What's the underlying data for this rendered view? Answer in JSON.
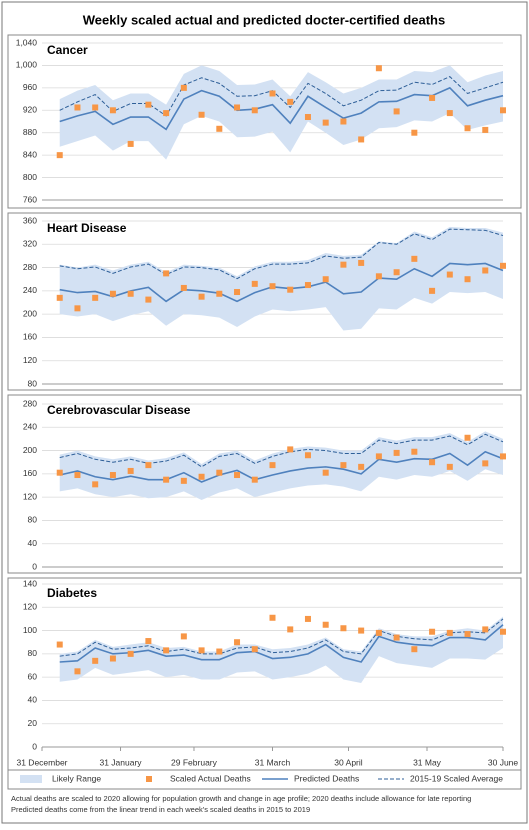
{
  "title": "Weekly scaled actual and predicted docter-certified deaths",
  "notes": [
    "Actual deaths are scaled to 2020 allowing for population growth and change in age profile; 2020 deaths include allowance for late reporting",
    "Predicted deaths come from the linear trend in each week's scaled deaths in 2015 to 2019"
  ],
  "chart_data": [
    {
      "type": "line",
      "title": "Cancer",
      "x": [
        7,
        14,
        21,
        28,
        35,
        42,
        49,
        56,
        63,
        70,
        77,
        84,
        91,
        98,
        105,
        112,
        119,
        126,
        133,
        140,
        147,
        154,
        161,
        168,
        175,
        182
      ],
      "xlim": [
        0,
        182
      ],
      "ylim": [
        760,
        1040
      ],
      "yticks": [
        760,
        800,
        840,
        880,
        920,
        960,
        {
          "value": 1000,
          "label": "1,000"
        },
        {
          "value": 1040,
          "label": "1,040"
        }
      ],
      "grid": true,
      "series": [
        {
          "name": "Likely Range",
          "type": "area",
          "color": "#d3e1f3",
          "low": [
            855,
            865,
            875,
            848,
            865,
            865,
            832,
            895,
            910,
            900,
            872,
            873,
            882,
            845,
            900,
            880,
            858,
            868,
            888,
            890,
            902,
            900,
            915,
            885,
            893,
            900
          ],
          "high": [
            940,
            955,
            965,
            938,
            950,
            950,
            930,
            985,
            1000,
            990,
            965,
            966,
            975,
            945,
            988,
            970,
            950,
            960,
            975,
            975,
            990,
            988,
            1000,
            970,
            982,
            990
          ]
        },
        {
          "name": "Scaled Actual Deaths",
          "type": "scatter",
          "color": "#f79646",
          "values": [
            840,
            925,
            925,
            920,
            860,
            930,
            915,
            960,
            912,
            887,
            925,
            920,
            950,
            935,
            908,
            898,
            900,
            868,
            995,
            918,
            880,
            942,
            915,
            888,
            885,
            920
          ]
        },
        {
          "name": "Predicted Deaths",
          "type": "line",
          "color": "#4f81bd",
          "values": [
            900,
            910,
            918,
            895,
            908,
            908,
            886,
            940,
            955,
            945,
            920,
            922,
            930,
            897,
            945,
            925,
            906,
            915,
            935,
            936,
            948,
            946,
            960,
            928,
            938,
            946
          ]
        },
        {
          "name": "2015-19 Scaled Average",
          "type": "line",
          "dash": true,
          "color": "#2e5f98",
          "values": [
            920,
            935,
            948,
            918,
            932,
            932,
            910,
            965,
            978,
            968,
            945,
            946,
            955,
            925,
            968,
            950,
            928,
            938,
            955,
            956,
            970,
            966,
            980,
            950,
            960,
            970
          ]
        }
      ]
    },
    {
      "type": "line",
      "title": "Heart Disease",
      "x": [
        7,
        14,
        21,
        28,
        35,
        42,
        49,
        56,
        63,
        70,
        77,
        84,
        91,
        98,
        105,
        112,
        119,
        126,
        133,
        140,
        147,
        154,
        161,
        168,
        175,
        182
      ],
      "xlim": [
        0,
        182
      ],
      "ylim": [
        80,
        360
      ],
      "yticks": [
        80,
        120,
        160,
        200,
        240,
        280,
        320,
        360
      ],
      "grid": true,
      "series": [
        {
          "type": "area",
          "color": "#d3e1f3",
          "low": [
            200,
            196,
            200,
            188,
            198,
            205,
            180,
            200,
            198,
            194,
            178,
            196,
            208,
            205,
            208,
            212,
            172,
            175,
            210,
            208,
            228,
            218,
            238,
            236,
            238,
            226
          ],
          "high": [
            285,
            280,
            285,
            275,
            285,
            290,
            272,
            285,
            283,
            280,
            265,
            282,
            290,
            290,
            293,
            305,
            300,
            302,
            325,
            322,
            342,
            332,
            350,
            348,
            348,
            340
          ]
        },
        {
          "type": "scatter",
          "color": "#f79646",
          "values": [
            228,
            210,
            228,
            235,
            235,
            225,
            270,
            245,
            230,
            235,
            238,
            252,
            248,
            242,
            250,
            260,
            285,
            288,
            265,
            272,
            295,
            240,
            268,
            260,
            275,
            283
          ]
        },
        {
          "type": "line",
          "color": "#4f81bd",
          "values": [
            242,
            237,
            239,
            230,
            240,
            246,
            222,
            242,
            240,
            236,
            222,
            237,
            247,
            244,
            247,
            255,
            235,
            238,
            262,
            260,
            278,
            265,
            287,
            285,
            287,
            275
          ]
        },
        {
          "type": "line",
          "dash": true,
          "color": "#2e5f98",
          "values": [
            283,
            278,
            281,
            270,
            281,
            286,
            268,
            281,
            280,
            276,
            261,
            278,
            286,
            286,
            288,
            300,
            296,
            298,
            323,
            320,
            338,
            328,
            346,
            345,
            344,
            335
          ]
        }
      ]
    },
    {
      "type": "line",
      "title": "Cerebrovascular Disease",
      "x": [
        7,
        14,
        21,
        28,
        35,
        42,
        49,
        56,
        63,
        70,
        77,
        84,
        91,
        98,
        105,
        112,
        119,
        126,
        133,
        140,
        147,
        154,
        161,
        168,
        175,
        182
      ],
      "xlim": [
        0,
        182
      ],
      "ylim": [
        0,
        280
      ],
      "yticks": [
        0,
        40,
        80,
        120,
        160,
        200,
        240,
        280
      ],
      "grid": true,
      "series": [
        {
          "type": "area",
          "color": "#d3e1f3",
          "low": [
            130,
            135,
            125,
            120,
            125,
            118,
            120,
            130,
            115,
            128,
            135,
            120,
            128,
            135,
            140,
            142,
            138,
            130,
            155,
            150,
            158,
            155,
            165,
            148,
            168,
            158
          ],
          "high": [
            193,
            200,
            190,
            185,
            190,
            183,
            187,
            197,
            177,
            195,
            200,
            183,
            195,
            203,
            207,
            205,
            200,
            200,
            223,
            217,
            223,
            223,
            230,
            215,
            233,
            220
          ]
        },
        {
          "type": "scatter",
          "color": "#f79646",
          "values": [
            162,
            158,
            142,
            158,
            165,
            175,
            150,
            148,
            155,
            162,
            158,
            150,
            175,
            202,
            192,
            162,
            175,
            172,
            190,
            196,
            198,
            180,
            172,
            222,
            178,
            190
          ]
        },
        {
          "type": "line",
          "color": "#4f81bd",
          "values": [
            158,
            165,
            155,
            150,
            156,
            150,
            150,
            162,
            146,
            158,
            166,
            150,
            158,
            165,
            170,
            172,
            168,
            160,
            185,
            180,
            186,
            185,
            195,
            175,
            198,
            186
          ]
        },
        {
          "type": "line",
          "dash": true,
          "color": "#2e5f98",
          "values": [
            188,
            195,
            185,
            180,
            185,
            178,
            182,
            192,
            172,
            190,
            195,
            178,
            190,
            198,
            202,
            200,
            195,
            195,
            218,
            212,
            218,
            218,
            225,
            210,
            228,
            215
          ]
        }
      ]
    },
    {
      "type": "line",
      "title": "Diabetes",
      "x": [
        7,
        14,
        21,
        28,
        35,
        42,
        49,
        56,
        63,
        70,
        77,
        84,
        91,
        98,
        105,
        112,
        119,
        126,
        133,
        140,
        147,
        154,
        161,
        168,
        175,
        182
      ],
      "xlim": [
        0,
        182
      ],
      "xticks": [
        {
          "value": 0,
          "label": "31 December"
        },
        {
          "value": 31,
          "label": "31 January"
        },
        {
          "value": 60,
          "label": "29 February"
        },
        {
          "value": 91,
          "label": "31 March"
        },
        {
          "value": 121,
          "label": "30 April"
        },
        {
          "value": 152,
          "label": "31 May"
        },
        {
          "value": 182,
          "label": "30 June"
        }
      ],
      "ylim": [
        0,
        140
      ],
      "yticks": [
        0,
        20,
        40,
        60,
        80,
        100,
        120,
        140
      ],
      "grid": true,
      "series": [
        {
          "type": "area",
          "color": "#d3e1f3",
          "low": [
            56,
            58,
            68,
            62,
            64,
            66,
            60,
            62,
            58,
            58,
            64,
            65,
            58,
            60,
            63,
            70,
            58,
            55,
            78,
            72,
            70,
            68,
            76,
            76,
            75,
            85
          ],
          "high": [
            80,
            82,
            92,
            86,
            88,
            90,
            85,
            86,
            82,
            82,
            88,
            88,
            84,
            85,
            88,
            94,
            84,
            82,
            102,
            97,
            95,
            95,
            100,
            102,
            100,
            112
          ]
        },
        {
          "type": "scatter",
          "color": "#f79646",
          "values": [
            88,
            65,
            74,
            76,
            80,
            91,
            83,
            95,
            83,
            82,
            90,
            84,
            111,
            101,
            110,
            105,
            102,
            100,
            98,
            94,
            84,
            99,
            98,
            97,
            101,
            99
          ]
        },
        {
          "type": "line",
          "color": "#4f81bd",
          "values": [
            73,
            74,
            85,
            80,
            81,
            83,
            78,
            79,
            75,
            75,
            81,
            82,
            76,
            77,
            80,
            88,
            77,
            73,
            95,
            90,
            88,
            87,
            94,
            94,
            92,
            105
          ]
        },
        {
          "type": "line",
          "dash": true,
          "color": "#2e5f98",
          "values": [
            78,
            80,
            90,
            84,
            85,
            87,
            82,
            84,
            80,
            80,
            85,
            86,
            81,
            82,
            85,
            92,
            82,
            80,
            100,
            95,
            93,
            92,
            98,
            99,
            98,
            110
          ]
        }
      ]
    }
  ]
}
